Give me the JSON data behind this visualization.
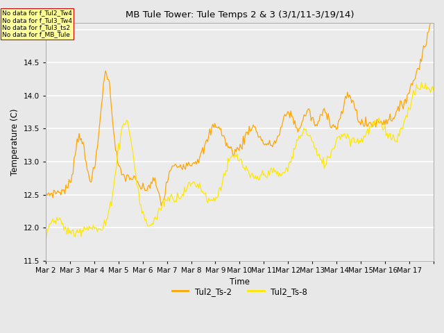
{
  "title": "MB Tule Tower: Tule Temps 2 & 3 (3/1/11-3/19/14)",
  "xlabel": "Time",
  "ylabel": "Temperature (C)",
  "ylim": [
    11.5,
    15.1
  ],
  "background_color": "#e8e8e8",
  "plot_bg_color": "#ebebeb",
  "series1_color": "#FFA500",
  "series2_color": "#FFE800",
  "series1_label": "Tul2_Ts-2",
  "series2_label": "Tul2_Ts-8",
  "xtick_labels": [
    "Mar 2",
    "Mar 3",
    "Mar 4",
    "Mar 5",
    "Mar 6",
    "Mar 7",
    "Mar 8",
    "Mar 9",
    "Mar 10",
    "Mar 11",
    "Mar 12",
    "Mar 13",
    "Mar 14",
    "Mar 15",
    "Mar 16",
    "Mar 17"
  ],
  "annotations": [
    "No data for f_Tul2_Tw4",
    "No data for f_Tul3_Tw4",
    "No data for f_Tul3_ts2",
    "No data for f_MB_Tule"
  ],
  "annotation_box_color": "#FFFF99",
  "annotation_border_color": "#CC0000"
}
